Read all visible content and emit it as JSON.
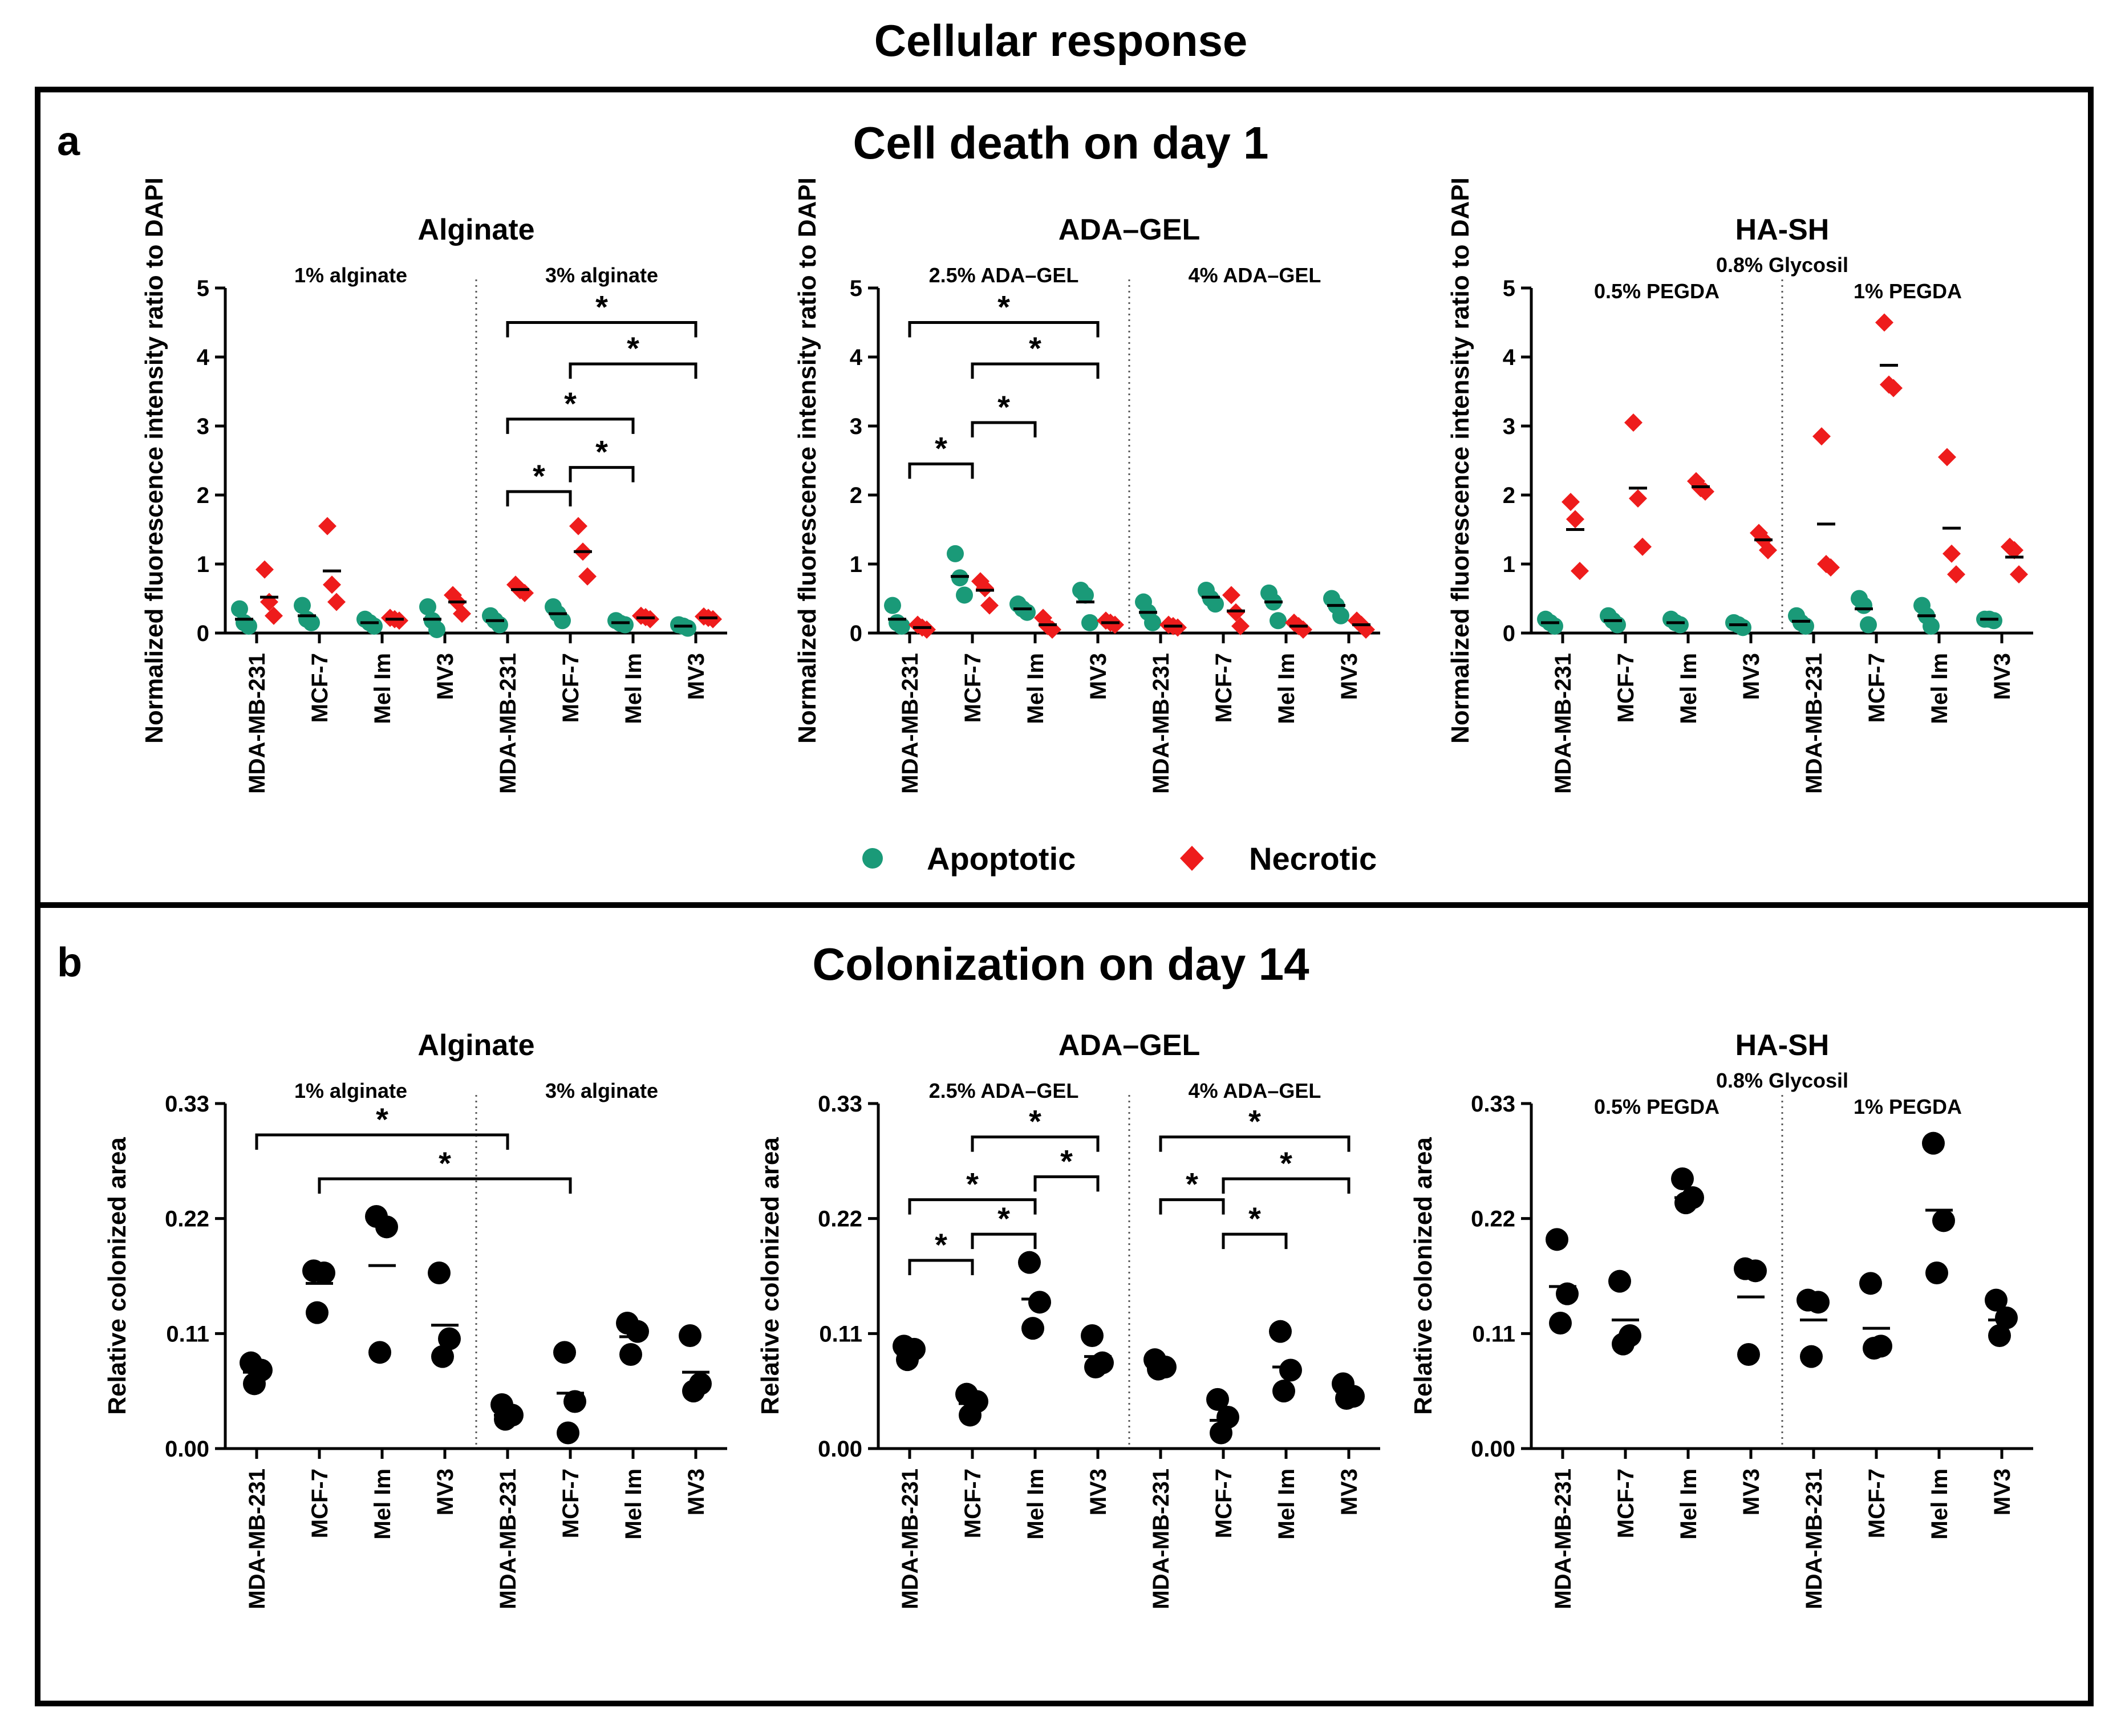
{
  "figure_title": "Cellular response",
  "panels": [
    {
      "letter": "a",
      "title": "Cell death on day 1"
    },
    {
      "letter": "b",
      "title": "Colonization on day 14"
    }
  ],
  "legend": {
    "apoptotic_label": "Apoptotic",
    "necrotic_label": "Necrotic",
    "apoptotic_color": "#1a9a78",
    "necrotic_color": "#ee1c1c",
    "apoptotic_marker": "circle",
    "necrotic_marker": "diamond"
  },
  "chart_data": [
    {
      "type": "scatter",
      "panel": "a",
      "title": "Alginate",
      "ylabel": "Normalized fluorescence intensity ratio to DAPI",
      "ylim": [
        0,
        5
      ],
      "yticks": [
        "0",
        "1",
        "2",
        "3",
        "4",
        "5"
      ],
      "supergroup": "",
      "groups": [
        "1% alginate",
        "3% alginate"
      ],
      "categories": [
        "MDA-MB-231",
        "MCF-7",
        "Mel Im",
        "MV3",
        "MDA-MB-231",
        "MCF-7",
        "Mel Im",
        "MV3"
      ],
      "series": [
        {
          "name": "Apoptotic",
          "values": [
            [
              0.35,
              0.15,
              0.1
            ],
            [
              0.4,
              0.2,
              0.15
            ],
            [
              0.2,
              0.15,
              0.1
            ],
            [
              0.38,
              0.18,
              0.05
            ],
            [
              0.25,
              0.18,
              0.12
            ],
            [
              0.38,
              0.28,
              0.18
            ],
            [
              0.18,
              0.14,
              0.12
            ],
            [
              0.12,
              0.1,
              0.07
            ]
          ],
          "means": [
            0.2,
            0.25,
            0.15,
            0.2,
            0.18,
            0.28,
            0.15,
            0.1
          ]
        },
        {
          "name": "Necrotic",
          "values": [
            [
              0.92,
              0.45,
              0.25
            ],
            [
              1.55,
              0.7,
              0.45
            ],
            [
              0.22,
              0.2,
              0.18
            ],
            [
              0.55,
              0.45,
              0.28
            ],
            [
              0.7,
              0.62,
              0.58
            ],
            [
              1.55,
              1.18,
              0.82
            ],
            [
              0.25,
              0.23,
              0.2
            ],
            [
              0.24,
              0.22,
              0.2
            ]
          ],
          "means": [
            0.52,
            0.9,
            0.2,
            0.45,
            0.63,
            1.18,
            0.22,
            0.22
          ]
        }
      ],
      "brackets": [
        {
          "from": 4,
          "to": 7,
          "y": 4.5,
          "label": "*"
        },
        {
          "from": 5,
          "to": 7,
          "y": 3.9,
          "label": "*"
        },
        {
          "from": 4,
          "to": 6,
          "y": 3.1,
          "label": "*"
        },
        {
          "from": 5,
          "to": 6,
          "y": 2.4,
          "label": "*"
        },
        {
          "from": 4,
          "to": 5,
          "y": 2.05,
          "label": "*"
        }
      ]
    },
    {
      "type": "scatter",
      "panel": "a",
      "title": "ADA–GEL",
      "ylabel": "Normalized fluorescence intensity ratio to DAPI",
      "ylim": [
        0,
        5
      ],
      "yticks": [
        "0",
        "1",
        "2",
        "3",
        "4",
        "5"
      ],
      "supergroup": "",
      "groups": [
        "2.5% ADA–GEL",
        "4% ADA–GEL"
      ],
      "categories": [
        "MDA-MB-231",
        "MCF-7",
        "Mel Im",
        "MV3",
        "MDA-MB-231",
        "MCF-7",
        "Mel Im",
        "MV3"
      ],
      "series": [
        {
          "name": "Apoptotic",
          "values": [
            [
              0.4,
              0.15,
              0.1
            ],
            [
              1.15,
              0.8,
              0.55
            ],
            [
              0.42,
              0.35,
              0.3
            ],
            [
              0.62,
              0.55,
              0.15
            ],
            [
              0.45,
              0.3,
              0.15
            ],
            [
              0.62,
              0.5,
              0.42
            ],
            [
              0.58,
              0.45,
              0.18
            ],
            [
              0.5,
              0.4,
              0.25
            ]
          ],
          "means": [
            0.2,
            0.82,
            0.35,
            0.45,
            0.3,
            0.52,
            0.45,
            0.4
          ]
        },
        {
          "name": "Necrotic",
          "values": [
            [
              0.12,
              0.08,
              0.05
            ],
            [
              0.75,
              0.65,
              0.4
            ],
            [
              0.22,
              0.1,
              0.05
            ],
            [
              0.18,
              0.15,
              0.12
            ],
            [
              0.12,
              0.1,
              0.08
            ],
            [
              0.55,
              0.3,
              0.1
            ],
            [
              0.15,
              0.1,
              0.05
            ],
            [
              0.18,
              0.12,
              0.05
            ]
          ],
          "means": [
            0.08,
            0.62,
            0.12,
            0.15,
            0.1,
            0.32,
            0.1,
            0.12
          ]
        }
      ],
      "brackets": [
        {
          "from": 0,
          "to": 3,
          "y": 4.5,
          "label": "*"
        },
        {
          "from": 1,
          "to": 3,
          "y": 3.9,
          "label": "*"
        },
        {
          "from": 1,
          "to": 2,
          "y": 3.05,
          "label": "*"
        },
        {
          "from": 0,
          "to": 1,
          "y": 2.45,
          "label": "*"
        }
      ]
    },
    {
      "type": "scatter",
      "panel": "a",
      "title": "HA-SH",
      "ylabel": "Normalized fluorescence intensity ratio to DAPI",
      "ylim": [
        0,
        5
      ],
      "yticks": [
        "0",
        "1",
        "2",
        "3",
        "4",
        "5"
      ],
      "supergroup": "0.8% Glycosil",
      "groups": [
        "0.5% PEGDA",
        "1% PEGDA"
      ],
      "categories": [
        "MDA-MB-231",
        "MCF-7",
        "Mel Im",
        "MV3",
        "MDA-MB-231",
        "MCF-7",
        "Mel Im",
        "MV3"
      ],
      "series": [
        {
          "name": "Apoptotic",
          "values": [
            [
              0.2,
              0.15,
              0.1
            ],
            [
              0.25,
              0.18,
              0.12
            ],
            [
              0.2,
              0.15,
              0.12
            ],
            [
              0.15,
              0.12,
              0.08
            ],
            [
              0.25,
              0.15,
              0.1
            ],
            [
              0.5,
              0.4,
              0.12
            ],
            [
              0.4,
              0.25,
              0.1
            ],
            [
              0.2,
              0.2,
              0.18
            ]
          ],
          "means": [
            0.15,
            0.18,
            0.15,
            0.12,
            0.17,
            0.35,
            0.25,
            0.2
          ]
        },
        {
          "name": "Necrotic",
          "values": [
            [
              1.9,
              1.65,
              0.9
            ],
            [
              3.05,
              1.95,
              1.25
            ],
            [
              2.2,
              2.1,
              2.05
            ],
            [
              1.45,
              1.35,
              1.2
            ],
            [
              2.85,
              1.0,
              0.95
            ],
            [
              4.5,
              3.6,
              3.55
            ],
            [
              2.55,
              1.15,
              0.85
            ],
            [
              1.25,
              1.2,
              0.85
            ]
          ],
          "means": [
            1.5,
            2.1,
            2.12,
            1.35,
            1.58,
            3.88,
            1.52,
            1.1
          ]
        }
      ],
      "brackets": []
    },
    {
      "type": "scatter",
      "panel": "b",
      "title": "Alginate",
      "ylabel": "Relative colonized area",
      "ylim": [
        0,
        0.33
      ],
      "yticks": [
        "0.00",
        "0.11",
        "0.22",
        "0.33"
      ],
      "supergroup": "",
      "groups": [
        "1% alginate",
        "3% alginate"
      ],
      "categories": [
        "MDA-MB-231",
        "MCF-7",
        "Mel Im",
        "MV3",
        "MDA-MB-231",
        "MCF-7",
        "Mel Im",
        "MV3"
      ],
      "series": [
        {
          "name": "Colonized area",
          "values": [
            [
              0.082,
              0.075,
              0.062
            ],
            [
              0.17,
              0.168,
              0.13
            ],
            [
              0.222,
              0.212,
              0.092
            ],
            [
              0.168,
              0.105,
              0.088
            ],
            [
              0.042,
              0.032,
              0.028
            ],
            [
              0.092,
              0.045,
              0.015
            ],
            [
              0.12,
              0.112,
              0.09
            ],
            [
              0.108,
              0.062,
              0.055
            ]
          ],
          "means": [
            0.073,
            0.158,
            0.175,
            0.118,
            0.032,
            0.053,
            0.107,
            0.073
          ]
        }
      ],
      "brackets": [
        {
          "from": 0,
          "to": 4,
          "y": 0.3,
          "label": "*"
        },
        {
          "from": 1,
          "to": 5,
          "y": 0.258,
          "label": "*"
        }
      ]
    },
    {
      "type": "scatter",
      "panel": "b",
      "title": "ADA–GEL",
      "ylabel": "Relative colonized area",
      "ylim": [
        0,
        0.33
      ],
      "yticks": [
        "0.00",
        "0.11",
        "0.22",
        "0.33"
      ],
      "supergroup": "",
      "groups": [
        "2.5% ADA–GEL",
        "4% ADA–GEL"
      ],
      "categories": [
        "MDA-MB-231",
        "MCF-7",
        "Mel Im",
        "MV3",
        "MDA-MB-231",
        "MCF-7",
        "Mel Im",
        "MV3"
      ],
      "series": [
        {
          "name": "Colonized area",
          "values": [
            [
              0.098,
              0.095,
              0.085
            ],
            [
              0.052,
              0.045,
              0.032
            ],
            [
              0.178,
              0.14,
              0.115
            ],
            [
              0.108,
              0.082,
              0.078
            ],
            [
              0.085,
              0.078,
              0.076
            ],
            [
              0.047,
              0.03,
              0.015
            ],
            [
              0.112,
              0.075,
              0.055
            ],
            [
              0.062,
              0.05,
              0.048
            ]
          ],
          "means": [
            0.094,
            0.043,
            0.143,
            0.088,
            0.078,
            0.027,
            0.078,
            0.055
          ]
        }
      ],
      "brackets": [
        {
          "from": 1,
          "to": 3,
          "y": 0.298,
          "label": "*"
        },
        {
          "from": 2,
          "to": 3,
          "y": 0.26,
          "label": "*"
        },
        {
          "from": 0,
          "to": 2,
          "y": 0.238,
          "label": "*"
        },
        {
          "from": 1,
          "to": 2,
          "y": 0.205,
          "label": "*"
        },
        {
          "from": 0,
          "to": 1,
          "y": 0.18,
          "label": "*"
        },
        {
          "from": 4,
          "to": 7,
          "y": 0.298,
          "label": "*"
        },
        {
          "from": 5,
          "to": 7,
          "y": 0.258,
          "label": "*"
        },
        {
          "from": 4,
          "to": 5,
          "y": 0.238,
          "label": "*"
        },
        {
          "from": 5,
          "to": 6,
          "y": 0.205,
          "label": "*"
        }
      ]
    },
    {
      "type": "scatter",
      "panel": "b",
      "title": "HA-SH",
      "ylabel": "Relative colonized area",
      "ylim": [
        0,
        0.33
      ],
      "yticks": [
        "0.00",
        "0.11",
        "0.22",
        "0.33"
      ],
      "supergroup": "0.8% Glycosil",
      "groups": [
        "0.5% PEGDA",
        "1% PEGDA"
      ],
      "categories": [
        "MDA-MB-231",
        "MCF-7",
        "Mel Im",
        "MV3",
        "MDA-MB-231",
        "MCF-7",
        "Mel Im",
        "MV3"
      ],
      "series": [
        {
          "name": "Colonized area",
          "values": [
            [
              0.2,
              0.148,
              0.12
            ],
            [
              0.16,
              0.108,
              0.1
            ],
            [
              0.258,
              0.24,
              0.235
            ],
            [
              0.172,
              0.17,
              0.09
            ],
            [
              0.142,
              0.14,
              0.088
            ],
            [
              0.158,
              0.098,
              0.096
            ],
            [
              0.292,
              0.218,
              0.168
            ],
            [
              0.142,
              0.125,
              0.108
            ]
          ],
          "means": [
            0.155,
            0.123,
            0.24,
            0.145,
            0.123,
            0.115,
            0.228,
            0.123
          ]
        }
      ],
      "brackets": []
    }
  ]
}
